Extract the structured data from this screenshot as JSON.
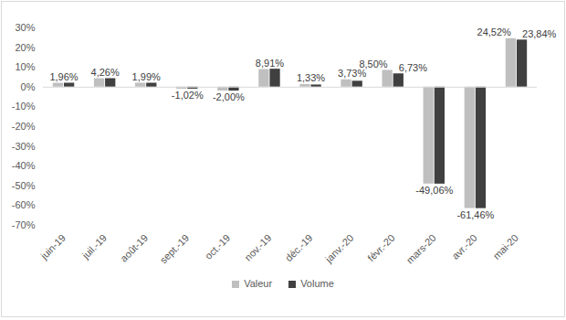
{
  "chart_data": {
    "type": "bar",
    "categories": [
      "juin-19",
      "juil.-19",
      "août-19",
      "sept.-19",
      "oct.-19",
      "nov.-19",
      "déc.-19",
      "janv.-20",
      "févr.-20",
      "mars-20",
      "avr.-20",
      "mai-20"
    ],
    "series": [
      {
        "name": "Valeur",
        "color": "#bfbfbf",
        "values": [
          1.96,
          4.26,
          1.99,
          -1.02,
          -2.0,
          8.91,
          1.33,
          3.73,
          8.5,
          -49.06,
          -61.46,
          24.52
        ],
        "value_labels": [
          "1,96%",
          "4,26%",
          "1,99%",
          "-1,02%",
          "-2,00%",
          "8,91%",
          "1,33%",
          "3,73%",
          "8,50%",
          "-49,06%",
          "-61,46%",
          "24,52%"
        ]
      },
      {
        "name": "Volume",
        "color": "#404040",
        "values": [
          2.0,
          4.3,
          2.0,
          -1.0,
          -2.0,
          9.1,
          1.1,
          3.0,
          6.73,
          -49.1,
          -61.5,
          23.84
        ],
        "value_labels": [
          null,
          null,
          null,
          null,
          null,
          null,
          null,
          null,
          "6,73%",
          null,
          null,
          "23,84%"
        ]
      }
    ],
    "ylim": [
      -70,
      30
    ],
    "yticks": [
      {
        "value": -70,
        "label": "-70%"
      },
      {
        "value": -60,
        "label": "-60%"
      },
      {
        "value": -50,
        "label": "-50%"
      },
      {
        "value": -40,
        "label": "-40%"
      },
      {
        "value": -30,
        "label": "-30%"
      },
      {
        "value": -20,
        "label": "-20%"
      },
      {
        "value": -10,
        "label": "-10%"
      },
      {
        "value": 0,
        "label": "0%"
      },
      {
        "value": 10,
        "label": "10%"
      },
      {
        "value": 20,
        "label": "20%"
      },
      {
        "value": 30,
        "label": "30%"
      }
    ],
    "grid": false,
    "legend": "bottom",
    "data_labels": true
  }
}
